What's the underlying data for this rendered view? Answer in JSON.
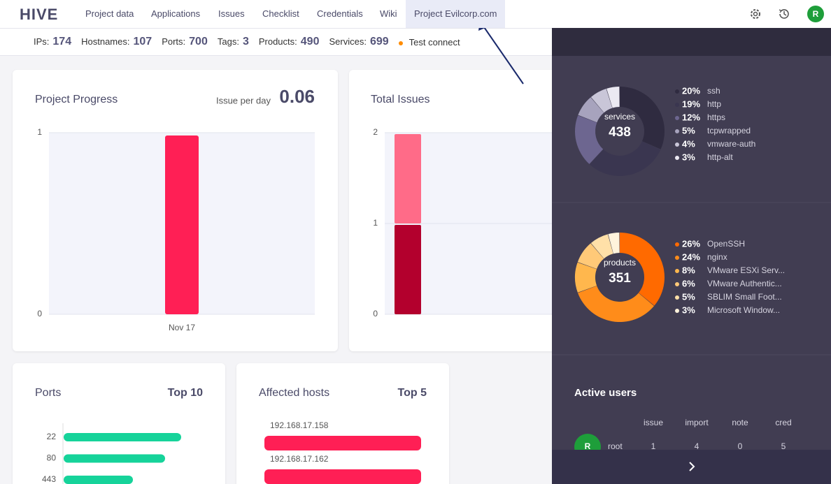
{
  "nav": {
    "logo": "HIVE",
    "tabs": [
      "Project data",
      "Applications",
      "Issues",
      "Checklist",
      "Credentials",
      "Wiki",
      "Project Evilcorp.com"
    ],
    "active_tab": 6,
    "avatar": "R"
  },
  "stats": {
    "items": [
      {
        "label": "IPs:",
        "value": 174
      },
      {
        "label": "Hostnames:",
        "value": 107
      },
      {
        "label": "Ports:",
        "value": 700
      },
      {
        "label": "Tags:",
        "value": 3
      },
      {
        "label": "Products:",
        "value": 490
      },
      {
        "label": "Services:",
        "value": 699
      }
    ],
    "test_connect": "Test connect"
  },
  "progress": {
    "title": "Project Progress",
    "rate_label": "Issue per day",
    "rate": 0.06,
    "type": "bar",
    "categories": [
      "Nov 17"
    ],
    "values": [
      1
    ],
    "color": "#ff1f55",
    "ylim": [
      0,
      1
    ],
    "yticks": [
      0,
      1
    ]
  },
  "issues": {
    "title": "Total Issues",
    "type": "stacked-bar",
    "values": [
      1,
      1
    ],
    "colors": [
      "#b3002d",
      "#ff6b88"
    ],
    "ylim": [
      0,
      2
    ],
    "yticks": [
      0,
      1,
      2
    ]
  },
  "ports": {
    "title": "Ports",
    "top": "Top 10",
    "categories": [
      "22",
      "80",
      "443"
    ],
    "values": [
      95,
      82,
      56
    ],
    "color": "#16d39a"
  },
  "hosts": {
    "title": "Affected hosts",
    "top": "Top 5",
    "categories": [
      "192.168.17.158",
      "192.168.17.162"
    ],
    "values": [
      10,
      10
    ],
    "color": "#ff1f55"
  },
  "panel": {
    "services": {
      "label": "services",
      "total": 438,
      "names": [
        "ssh",
        "http",
        "https",
        "tcpwrapped",
        "vmware-auth",
        "http-alt"
      ],
      "values": [
        20,
        19,
        12,
        5,
        4,
        3
      ],
      "value_labels": [
        "20%",
        "19%",
        "12%",
        "5%",
        "4%",
        "3%"
      ],
      "colors": [
        "#2f2b40",
        "#3a3650",
        "#6d6690",
        "#a7a3bd",
        "#c9c6d8",
        "#ebe9f2"
      ]
    },
    "products": {
      "label": "products",
      "total": 351,
      "names": [
        "OpenSSH",
        "nginx",
        "VMware ESXi Serv...",
        "VMware Authentic...",
        "SBLIM Small Foot...",
        "Microsoft Window..."
      ],
      "values": [
        26,
        24,
        8,
        6,
        5,
        3
      ],
      "value_labels": [
        "26%",
        "24%",
        "8%",
        "6%",
        "5%",
        "3%"
      ],
      "colors": [
        "#ff6a00",
        "#ff8c1a",
        "#ffb74d",
        "#ffc978",
        "#ffe0a8",
        "#fff3dc"
      ]
    },
    "users": {
      "title": "Active users",
      "columns": [
        "issue",
        "import",
        "note",
        "cred"
      ],
      "rows": [
        {
          "avatar": "R",
          "name": "root",
          "values": [
            1,
            4,
            0,
            5
          ]
        }
      ]
    }
  }
}
